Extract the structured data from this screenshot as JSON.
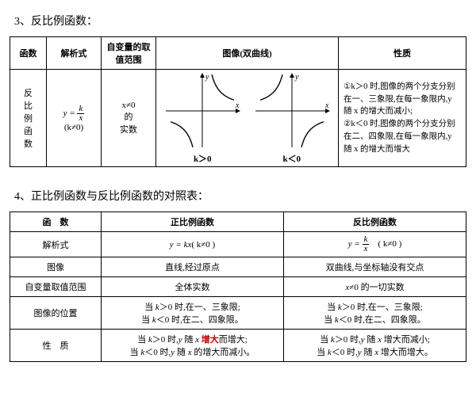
{
  "section1": {
    "title": "3、反比例函数：",
    "headers": [
      "函数",
      "解析式",
      "自变量的取值范围",
      "图像(双曲线)",
      "性质"
    ],
    "col_widths_pct": [
      8,
      12,
      12,
      40,
      28
    ],
    "row": {
      "name": "反比例函数",
      "formula_html": "y = <span class='frac'><span class='n'>k</span><span class='d'>x</span></span>",
      "formula_cond": "(k≠0)",
      "domain_top": "x≠0",
      "domain_mid": "的",
      "domain_bot": "实数",
      "graph_a_caption": "k＞0",
      "graph_b_caption": "k＜0",
      "prop1": "①k＞0 时,图像的两个分支分别在一、三象限,在每一象限内,y 随 x 的增大而减小;",
      "prop2": "②k＜0 时,图像的两个分支分别在二、四象限,在每一象限内,y 随 x 的增大而增大"
    },
    "graph": {
      "size": 100,
      "axis_color": "#000",
      "curve_color": "#000",
      "curve_width": 1.4
    }
  },
  "section2": {
    "title": "4、正比例函数与反比例函数的对照表：",
    "col_widths_pct": [
      20,
      40,
      40
    ],
    "header_row": [
      "函　数",
      "正比例函数",
      "反比例函数"
    ],
    "rows": [
      {
        "label": "解析式",
        "a_html": "<span class='formula'>y = kx</span>( k≠0 )",
        "b_html": "<span class='formula'>y = <span class='frac'><span class='n'>k</span><span class='d'>x</span></span></span>　( k≠0 )"
      },
      {
        "label": "图像",
        "a": "直线,经过原点",
        "b": "双曲线,与坐标轴没有交点"
      },
      {
        "label": "自变量取值范围",
        "a": "全体实数",
        "b_html": "<span class='formula'>x</span>≠0 的一切实数"
      },
      {
        "label": "图像的位置",
        "a_html": "当 <i>k</i>＞0 时,在一、三象限;<br>当 <i>k</i>＜0 时,在二、四象限。",
        "b_html": "当 <i>k</i>＞0 时,在一、三象限;<br>当 <i>k</i>＜0 时,在二、四象限。"
      },
      {
        "label": "性　质",
        "a_html": "当 <i>k</i>＞0 时,<i>y</i> 随 <i>x</i> <span class='red'>增大</span>而增大;<br>当 <i>k</i>＜0 时,<i>y</i> 随 <i>x</i> 的增大而减小。",
        "b_html": "当 <i>k</i>＞0 时,<i>y</i> 随 <i>x</i> 增大而减小;<br>当 <i>k</i>＜0 时,<i>y</i> 随 <i>x</i> 增大而增大。"
      }
    ]
  }
}
